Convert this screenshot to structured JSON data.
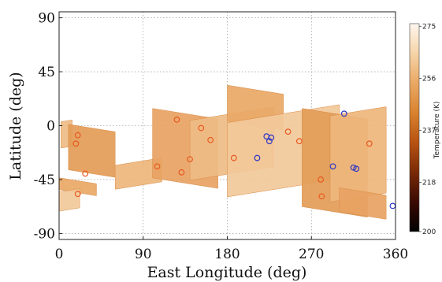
{
  "chart_data": {
    "type": "map",
    "xlabel": "East Longitude (deg)",
    "ylabel": "Latitude (deg)",
    "xlim": [
      0,
      360
    ],
    "ylim": [
      -95,
      95
    ],
    "xticks": [
      "0",
      "90",
      "180",
      "270",
      "360"
    ],
    "yticks": [
      "90",
      "45",
      "0",
      "-45",
      "-90"
    ],
    "xtick_values": [
      0,
      90,
      180,
      270,
      360
    ],
    "ytick_values": [
      90,
      45,
      0,
      -45,
      -90
    ],
    "grid": true,
    "colorbar": {
      "label": "Temperature (K)",
      "range": [
        200,
        276
      ],
      "ticks": [
        "275",
        "256",
        "237",
        "218",
        "200"
      ],
      "tick_values": [
        275,
        256,
        237,
        218,
        200
      ],
      "colors": [
        "#000000",
        "#3a0a02",
        "#7a2a06",
        "#b85212",
        "#d9822f",
        "#eaa863",
        "#f6d4a8",
        "#fdf6ee"
      ]
    },
    "coverage_strips": [
      {
        "lon": [
          2,
          14
        ],
        "lat": [
          4,
          -18
        ]
      },
      {
        "lon": [
          0,
          40
        ],
        "lat": [
          -46,
          -56
        ]
      },
      {
        "lon": [
          0,
          22
        ],
        "lat": [
          -54,
          -70
        ]
      },
      {
        "lon": [
          10,
          60
        ],
        "lat": [
          -2,
          -40
        ]
      },
      {
        "lon": [
          60,
          110
        ],
        "lat": [
          -30,
          -50
        ]
      },
      {
        "lon": [
          100,
          170
        ],
        "lat": [
          10,
          -48
        ]
      },
      {
        "lon": [
          140,
          230
        ],
        "lat": [
          10,
          -40
        ]
      },
      {
        "lon": [
          180,
          240
        ],
        "lat": [
          30,
          0
        ]
      },
      {
        "lon": [
          180,
          300
        ],
        "lat": [
          10,
          -52
        ]
      },
      {
        "lon": [
          260,
          330
        ],
        "lat": [
          10,
          -72
        ]
      },
      {
        "lon": [
          290,
          350
        ],
        "lat": [
          12,
          -60
        ]
      },
      {
        "lon": [
          300,
          350
        ],
        "lat": [
          -55,
          -75
        ]
      }
    ],
    "series": [
      {
        "marker_color": "#e8591f",
        "points": [
          {
            "lon": 18,
            "lat": -15
          },
          {
            "lon": 20,
            "lat": -8
          },
          {
            "lon": 28,
            "lat": -40
          },
          {
            "lon": 20,
            "lat": -57
          },
          {
            "lon": 105,
            "lat": -34
          },
          {
            "lon": 126,
            "lat": 5
          },
          {
            "lon": 131,
            "lat": -39
          },
          {
            "lon": 140,
            "lat": -28
          },
          {
            "lon": 152,
            "lat": -2
          },
          {
            "lon": 162,
            "lat": -12
          },
          {
            "lon": 187,
            "lat": -27
          },
          {
            "lon": 245,
            "lat": -5
          },
          {
            "lon": 257,
            "lat": -13
          },
          {
            "lon": 280,
            "lat": -45
          },
          {
            "lon": 281,
            "lat": -59
          },
          {
            "lon": 332,
            "lat": -15
          }
        ]
      },
      {
        "marker_color": "#2b35c8",
        "points": [
          {
            "lon": 222,
            "lat": -9
          },
          {
            "lon": 225,
            "lat": -13
          },
          {
            "lon": 227,
            "lat": -10
          },
          {
            "lon": 212,
            "lat": -27
          },
          {
            "lon": 293,
            "lat": -34
          },
          {
            "lon": 305,
            "lat": 10
          },
          {
            "lon": 315,
            "lat": -35
          },
          {
            "lon": 318,
            "lat": -36
          },
          {
            "lon": 357,
            "lat": -67
          }
        ]
      }
    ]
  }
}
